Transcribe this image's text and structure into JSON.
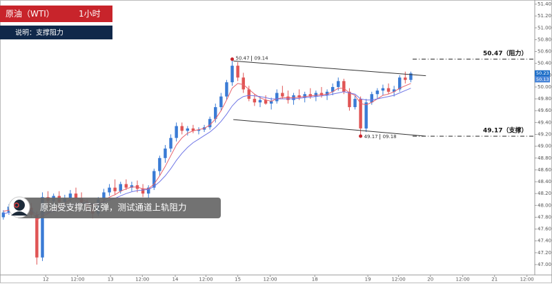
{
  "chart_data": {
    "type": "candlestick",
    "title": "原油（WTI）",
    "timeframe": "1小时",
    "subtitle": "说明：支撑阻力",
    "note": "原油受支撑后反弹，测试通道上轨阻力",
    "up_color": "#3a7bd5",
    "down_color": "#e05555",
    "open": [
      47.8,
      47.88,
      47.98,
      47.95,
      48.02,
      47.96,
      47.84,
      47.12,
      48.14,
      48.08,
      48.16,
      48.06,
      48.12,
      48.2,
      48.12,
      48.04,
      47.94,
      47.86,
      48.1,
      48.22,
      48.3,
      48.24,
      48.36,
      48.3,
      48.34,
      48.28,
      48.2,
      48.3,
      48.58,
      48.8,
      48.96,
      49.14,
      49.34,
      49.26,
      49.3,
      49.26,
      49.28,
      49.32,
      49.46,
      49.66,
      49.84,
      50.08,
      50.36,
      50.16,
      49.96,
      49.8,
      49.74,
      49.78,
      49.72,
      49.76,
      49.9,
      49.84,
      49.78,
      49.86,
      49.82,
      49.88,
      49.84,
      49.9,
      49.86,
      49.92,
      50.0,
      50.1,
      49.92,
      49.66,
      49.8,
      49.3,
      49.74,
      49.88,
      49.94,
      49.98,
      49.92,
      49.96,
      50.16,
      50.12
    ],
    "high": [
      47.92,
      48.02,
      48.1,
      48.06,
      48.12,
      48.04,
      47.9,
      48.22,
      48.24,
      48.2,
      48.24,
      48.18,
      48.26,
      48.3,
      48.22,
      48.1,
      48.02,
      48.14,
      48.28,
      48.36,
      48.44,
      48.4,
      48.44,
      48.4,
      48.42,
      48.36,
      48.34,
      48.62,
      48.84,
      49.02,
      49.2,
      49.4,
      49.4,
      49.34,
      49.36,
      49.32,
      49.36,
      49.5,
      49.72,
      49.9,
      50.12,
      50.47,
      50.42,
      50.24,
      50.02,
      49.88,
      49.84,
      49.86,
      49.82,
      49.96,
      50.02,
      49.94,
      49.9,
      49.96,
      49.92,
      49.98,
      49.94,
      50.0,
      49.96,
      50.06,
      50.16,
      50.14,
      49.98,
      49.86,
      49.84,
      49.8,
      49.92,
      49.98,
      50.04,
      50.06,
      50.02,
      50.2,
      50.26,
      50.26
    ],
    "low": [
      47.76,
      47.84,
      47.92,
      47.88,
      47.94,
      47.8,
      47.0,
      47.06,
      48.0,
      47.98,
      48.04,
      47.98,
      48.06,
      48.08,
      48.0,
      47.9,
      47.78,
      47.82,
      48.04,
      48.16,
      48.18,
      48.2,
      48.26,
      48.24,
      48.22,
      48.14,
      48.12,
      48.26,
      48.5,
      48.72,
      48.9,
      49.08,
      49.2,
      49.18,
      49.22,
      49.2,
      49.24,
      49.28,
      49.4,
      49.6,
      49.78,
      50.02,
      50.1,
      49.9,
      49.76,
      49.68,
      49.66,
      49.7,
      49.62,
      49.72,
      49.8,
      49.72,
      49.7,
      49.78,
      49.74,
      49.8,
      49.76,
      49.82,
      49.78,
      49.86,
      49.94,
      49.88,
      49.6,
      49.62,
      49.17,
      49.24,
      49.7,
      49.8,
      49.86,
      49.88,
      49.84,
      49.92,
      50.06,
      50.08
    ],
    "close": [
      47.88,
      47.98,
      47.95,
      48.02,
      47.96,
      47.84,
      47.12,
      48.14,
      48.08,
      48.16,
      48.06,
      48.12,
      48.2,
      48.12,
      48.04,
      47.94,
      47.86,
      48.1,
      48.22,
      48.3,
      48.24,
      48.36,
      48.3,
      48.34,
      48.28,
      48.2,
      48.3,
      48.58,
      48.8,
      48.96,
      49.14,
      49.34,
      49.26,
      49.3,
      49.26,
      49.28,
      49.32,
      49.46,
      49.66,
      49.84,
      50.08,
      50.36,
      50.16,
      49.96,
      49.8,
      49.74,
      49.78,
      49.72,
      49.76,
      49.9,
      49.84,
      49.78,
      49.86,
      49.82,
      49.88,
      49.84,
      49.9,
      49.86,
      49.92,
      50.0,
      50.1,
      49.92,
      49.66,
      49.8,
      49.3,
      49.74,
      49.88,
      49.94,
      49.98,
      49.92,
      49.96,
      50.16,
      50.12,
      50.23
    ],
    "series": [
      {
        "color": "#e8606a",
        "values": [
          47.9,
          47.92,
          47.93,
          47.95,
          47.96,
          47.93,
          47.75,
          47.82,
          47.86,
          47.92,
          47.98,
          48.04,
          48.1,
          48.12,
          48.1,
          48.06,
          48.0,
          48.02,
          48.08,
          48.14,
          48.18,
          48.24,
          48.28,
          48.31,
          48.31,
          48.28,
          48.28,
          48.36,
          48.5,
          48.66,
          48.84,
          49.02,
          49.14,
          49.22,
          49.26,
          49.28,
          49.3,
          49.36,
          49.46,
          49.6,
          49.78,
          49.98,
          50.06,
          50.04,
          49.96,
          49.88,
          49.82,
          49.78,
          49.76,
          49.8,
          49.82,
          49.82,
          49.82,
          49.83,
          49.84,
          49.85,
          49.86,
          49.87,
          49.88,
          49.92,
          49.98,
          49.98,
          49.9,
          49.86,
          49.72,
          49.7,
          49.74,
          49.8,
          49.86,
          49.88,
          49.92,
          49.98,
          50.02,
          50.06
        ]
      },
      {
        "color": "#6f76e6",
        "values": [
          47.86,
          47.88,
          47.9,
          47.91,
          47.92,
          47.92,
          47.84,
          47.86,
          47.88,
          47.9,
          47.93,
          47.96,
          48.0,
          48.02,
          48.04,
          48.04,
          48.02,
          48.03,
          48.06,
          48.09,
          48.12,
          48.16,
          48.2,
          48.23,
          48.25,
          48.26,
          48.27,
          48.32,
          48.4,
          48.5,
          48.62,
          48.76,
          48.88,
          48.98,
          49.06,
          49.12,
          49.18,
          49.24,
          49.32,
          49.42,
          49.54,
          49.68,
          49.78,
          49.84,
          49.86,
          49.85,
          49.84,
          49.82,
          49.8,
          49.8,
          49.8,
          49.8,
          49.8,
          49.81,
          49.82,
          49.83,
          49.84,
          49.85,
          49.86,
          49.88,
          49.9,
          49.92,
          49.9,
          49.88,
          49.8,
          49.78,
          49.78,
          49.8,
          49.82,
          49.84,
          49.86,
          49.9,
          49.94,
          49.98
        ]
      }
    ],
    "channel": [
      {
        "x": [
          41.2,
          75.7
        ],
        "y": [
          50.44,
          50.19
        ]
      },
      {
        "x": [
          41.2,
          75.7
        ],
        "y": [
          49.45,
          49.17
        ]
      }
    ],
    "extremes": [
      {
        "value": 50.47,
        "time": "09.14",
        "kind": "high"
      },
      {
        "value": 49.17,
        "time": "09.18",
        "kind": "low"
      }
    ],
    "levels": [
      {
        "value": 50.47,
        "label": "50.47（阻力）"
      },
      {
        "value": 49.17,
        "label": "49.17（支撑）"
      }
    ],
    "price_tags": [
      {
        "value": 50.23,
        "color": "#1e6fc8"
      },
      {
        "value": 50.13,
        "color": "#4a86d8"
      }
    ],
    "xlim": [
      -0.6,
      95.2
    ],
    "xticks": [
      {
        "value": 7.6,
        "label": "12"
      },
      {
        "value": 13.3,
        "label": "12:00"
      },
      {
        "value": 19.2,
        "label": "13"
      },
      {
        "value": 24.9,
        "label": "12:00"
      },
      {
        "value": 30.8,
        "label": "14"
      },
      {
        "value": 36.3,
        "label": "12:00"
      },
      {
        "value": 42,
        "label": "15"
      },
      {
        "value": 47.8,
        "label": "12:00"
      },
      {
        "value": 55.8,
        "label": "18"
      },
      {
        "value": 65.3,
        "label": "19"
      },
      {
        "value": 70.8,
        "label": "12:00"
      },
      {
        "value": 76.5,
        "label": "20"
      },
      {
        "value": 82.3,
        "label": "12:00"
      },
      {
        "value": 88,
        "label": "21"
      },
      {
        "value": 93.8,
        "label": "12:00"
      }
    ],
    "ylim": [
      46.86,
      51.47
    ],
    "yticks": [
      {
        "value": 47,
        "label": "47.00"
      },
      {
        "value": 47.2,
        "label": "47.20"
      },
      {
        "value": 47.4,
        "label": "47.40"
      },
      {
        "value": 47.6,
        "label": "47.60"
      },
      {
        "value": 47.8,
        "label": "47.80"
      },
      {
        "value": 48,
        "label": "48.00"
      },
      {
        "value": 48.2,
        "label": "48.20"
      },
      {
        "value": 48.4,
        "label": "48.40"
      },
      {
        "value": 48.6,
        "label": "48.60"
      },
      {
        "value": 48.8,
        "label": "48.80"
      },
      {
        "value": 49,
        "label": "49.00"
      },
      {
        "value": 49.2,
        "label": "49.20"
      },
      {
        "value": 49.4,
        "label": "49.40"
      },
      {
        "value": 49.6,
        "label": "49.60"
      },
      {
        "value": 49.8,
        "label": "49.80"
      },
      {
        "value": 50,
        "label": "50.00"
      },
      {
        "value": 50.2,
        "label": "50.20"
      },
      {
        "value": 50.4,
        "label": "50.40"
      },
      {
        "value": 50.6,
        "label": "50.60"
      },
      {
        "value": 50.8,
        "label": "50.80"
      },
      {
        "value": 51,
        "label": "51.00"
      },
      {
        "value": 51.2,
        "label": "51.20"
      },
      {
        "value": 51.4,
        "label": "51.40"
      }
    ]
  }
}
